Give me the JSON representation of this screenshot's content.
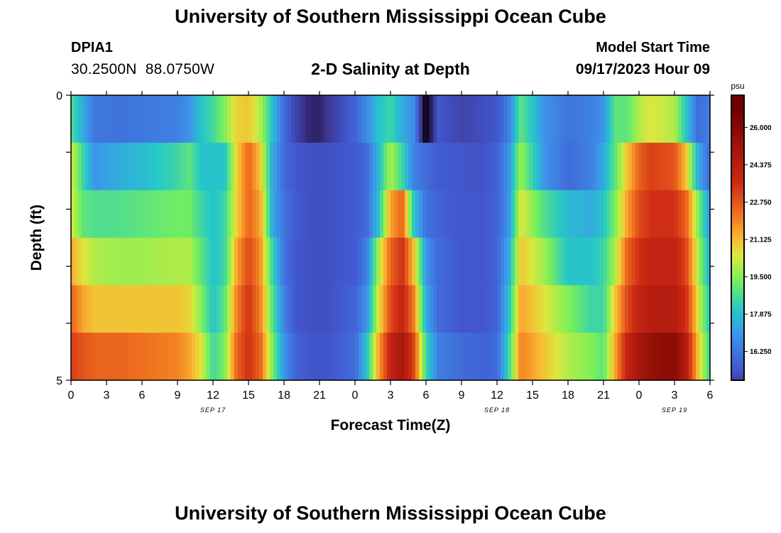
{
  "header": {
    "title": "University of Southern Mississippi Ocean Cube",
    "station_id": "DPIA1",
    "station_coords": "30.2500N  88.0750W",
    "subtitle": "2-D Salinity at Depth",
    "model_start_label": "Model Start Time",
    "model_start_value": "09/17/2023 Hour 09"
  },
  "footer": {
    "title": "University of Southern Mississippi Ocean Cube"
  },
  "chart_data": {
    "type": "heatmap",
    "xlabel": "Forecast Time(Z)",
    "ylabel": "Depth (ft)",
    "x_tick_labels": [
      "0",
      "3",
      "6",
      "9",
      "12",
      "15",
      "18",
      "21",
      "0",
      "3",
      "6",
      "9",
      "12",
      "15",
      "18",
      "21",
      "0",
      "3",
      "6"
    ],
    "x_hours": [
      0,
      3,
      6,
      9,
      12,
      15,
      18,
      21,
      24,
      27,
      30,
      33,
      36,
      39,
      42,
      45,
      48,
      51,
      54
    ],
    "xlim": [
      0,
      54
    ],
    "date_labels": [
      {
        "label": "SEP 17",
        "hour": 12
      },
      {
        "label": "SEP 18",
        "hour": 36
      },
      {
        "label": "SEP 19",
        "hour": 51
      }
    ],
    "y_tick_labels": [
      "0",
      "5"
    ],
    "ylim": [
      0,
      5
    ],
    "depth_levels": [
      0,
      1,
      2,
      3,
      4,
      5
    ],
    "colorbar": {
      "unit": "psu",
      "range": [
        15,
        27.4
      ],
      "tick_values": [
        16.25,
        17.875,
        19.5,
        21.125,
        22.75,
        24.375,
        26.0
      ],
      "tick_labels": [
        "16.250",
        "17.875",
        "19.500",
        "21.125",
        "22.750",
        "24.375",
        "26.000"
      ]
    },
    "time_knots_hours": [
      0,
      1,
      2,
      4,
      6,
      9,
      10,
      11,
      12,
      13,
      14,
      15,
      16,
      17,
      18,
      19,
      20,
      21,
      22,
      24,
      25,
      26,
      27,
      28,
      29,
      30,
      31,
      33,
      35,
      36,
      37,
      38,
      40,
      42,
      44,
      45,
      46,
      47,
      48,
      49,
      51,
      52,
      53,
      54
    ],
    "salinity": [
      [
        18.8,
        17.5,
        16.3,
        16.2,
        16.3,
        16.5,
        17.0,
        18.0,
        18.6,
        19.5,
        20.8,
        21.0,
        20.0,
        18.0,
        16.0,
        15.0,
        14.3,
        14.2,
        14.8,
        15.8,
        16.8,
        18.0,
        18.5,
        17.5,
        16.8,
        13.0,
        15.5,
        15.0,
        15.3,
        15.5,
        16.5,
        19.0,
        17.0,
        16.2,
        16.5,
        17.0,
        19.0,
        19.0,
        20.0,
        20.5,
        20.0,
        18.0,
        16.0,
        16.5
      ],
      [
        20.5,
        18.5,
        17.0,
        17.5,
        17.8,
        18.5,
        19.0,
        18.0,
        18.0,
        18.0,
        20.8,
        22.5,
        21.0,
        17.5,
        16.0,
        15.5,
        15.4,
        15.3,
        15.4,
        15.6,
        16.0,
        17.8,
        20.0,
        18.5,
        16.5,
        16.0,
        15.6,
        15.5,
        15.4,
        15.8,
        17.0,
        19.8,
        17.0,
        16.0,
        16.5,
        17.5,
        19.0,
        21.0,
        22.5,
        23.2,
        22.8,
        21.0,
        17.5,
        16.0
      ],
      [
        20.5,
        19.0,
        18.8,
        18.8,
        19.0,
        19.3,
        19.3,
        18.5,
        18.0,
        18.5,
        20.8,
        22.5,
        21.5,
        17.5,
        16.2,
        15.6,
        15.4,
        15.3,
        15.4,
        15.6,
        16.0,
        18.0,
        21.5,
        22.5,
        18.0,
        16.2,
        15.8,
        15.5,
        15.5,
        15.8,
        17.0,
        20.5,
        18.8,
        17.8,
        17.5,
        18.0,
        19.5,
        21.5,
        23.0,
        23.5,
        23.5,
        22.5,
        19.5,
        17.0
      ],
      [
        21.5,
        20.5,
        20.0,
        19.8,
        19.8,
        20.0,
        20.0,
        19.0,
        18.0,
        18.5,
        21.5,
        23.0,
        21.8,
        18.5,
        16.2,
        15.5,
        15.4,
        15.3,
        15.4,
        15.6,
        16.5,
        20.0,
        22.5,
        23.5,
        21.0,
        17.0,
        16.0,
        15.5,
        15.5,
        15.8,
        17.5,
        21.0,
        19.8,
        18.0,
        18.0,
        18.5,
        20.0,
        22.5,
        23.5,
        24.0,
        24.0,
        23.0,
        20.0,
        17.5
      ],
      [
        22.5,
        21.5,
        21.0,
        21.0,
        21.0,
        21.0,
        20.8,
        19.5,
        18.0,
        19.0,
        22.0,
        23.5,
        22.0,
        19.0,
        16.5,
        15.5,
        15.4,
        15.3,
        15.4,
        15.8,
        17.0,
        20.5,
        23.0,
        24.0,
        22.0,
        17.5,
        16.0,
        15.5,
        15.5,
        15.8,
        18.0,
        21.5,
        20.5,
        19.5,
        18.5,
        18.5,
        21.0,
        23.0,
        24.0,
        24.5,
        24.5,
        23.5,
        20.5,
        18.0
      ],
      [
        23.2,
        22.8,
        22.5,
        22.5,
        22.3,
        22.0,
        21.5,
        20.5,
        18.5,
        19.5,
        22.5,
        23.5,
        22.5,
        19.5,
        17.0,
        15.8,
        15.5,
        15.4,
        15.5,
        16.0,
        18.0,
        21.5,
        24.0,
        25.0,
        23.0,
        18.5,
        16.5,
        16.0,
        15.8,
        16.0,
        18.5,
        22.0,
        21.0,
        20.0,
        19.5,
        19.0,
        21.5,
        24.0,
        25.0,
        25.5,
        26.0,
        24.5,
        21.0,
        18.5
      ]
    ]
  }
}
